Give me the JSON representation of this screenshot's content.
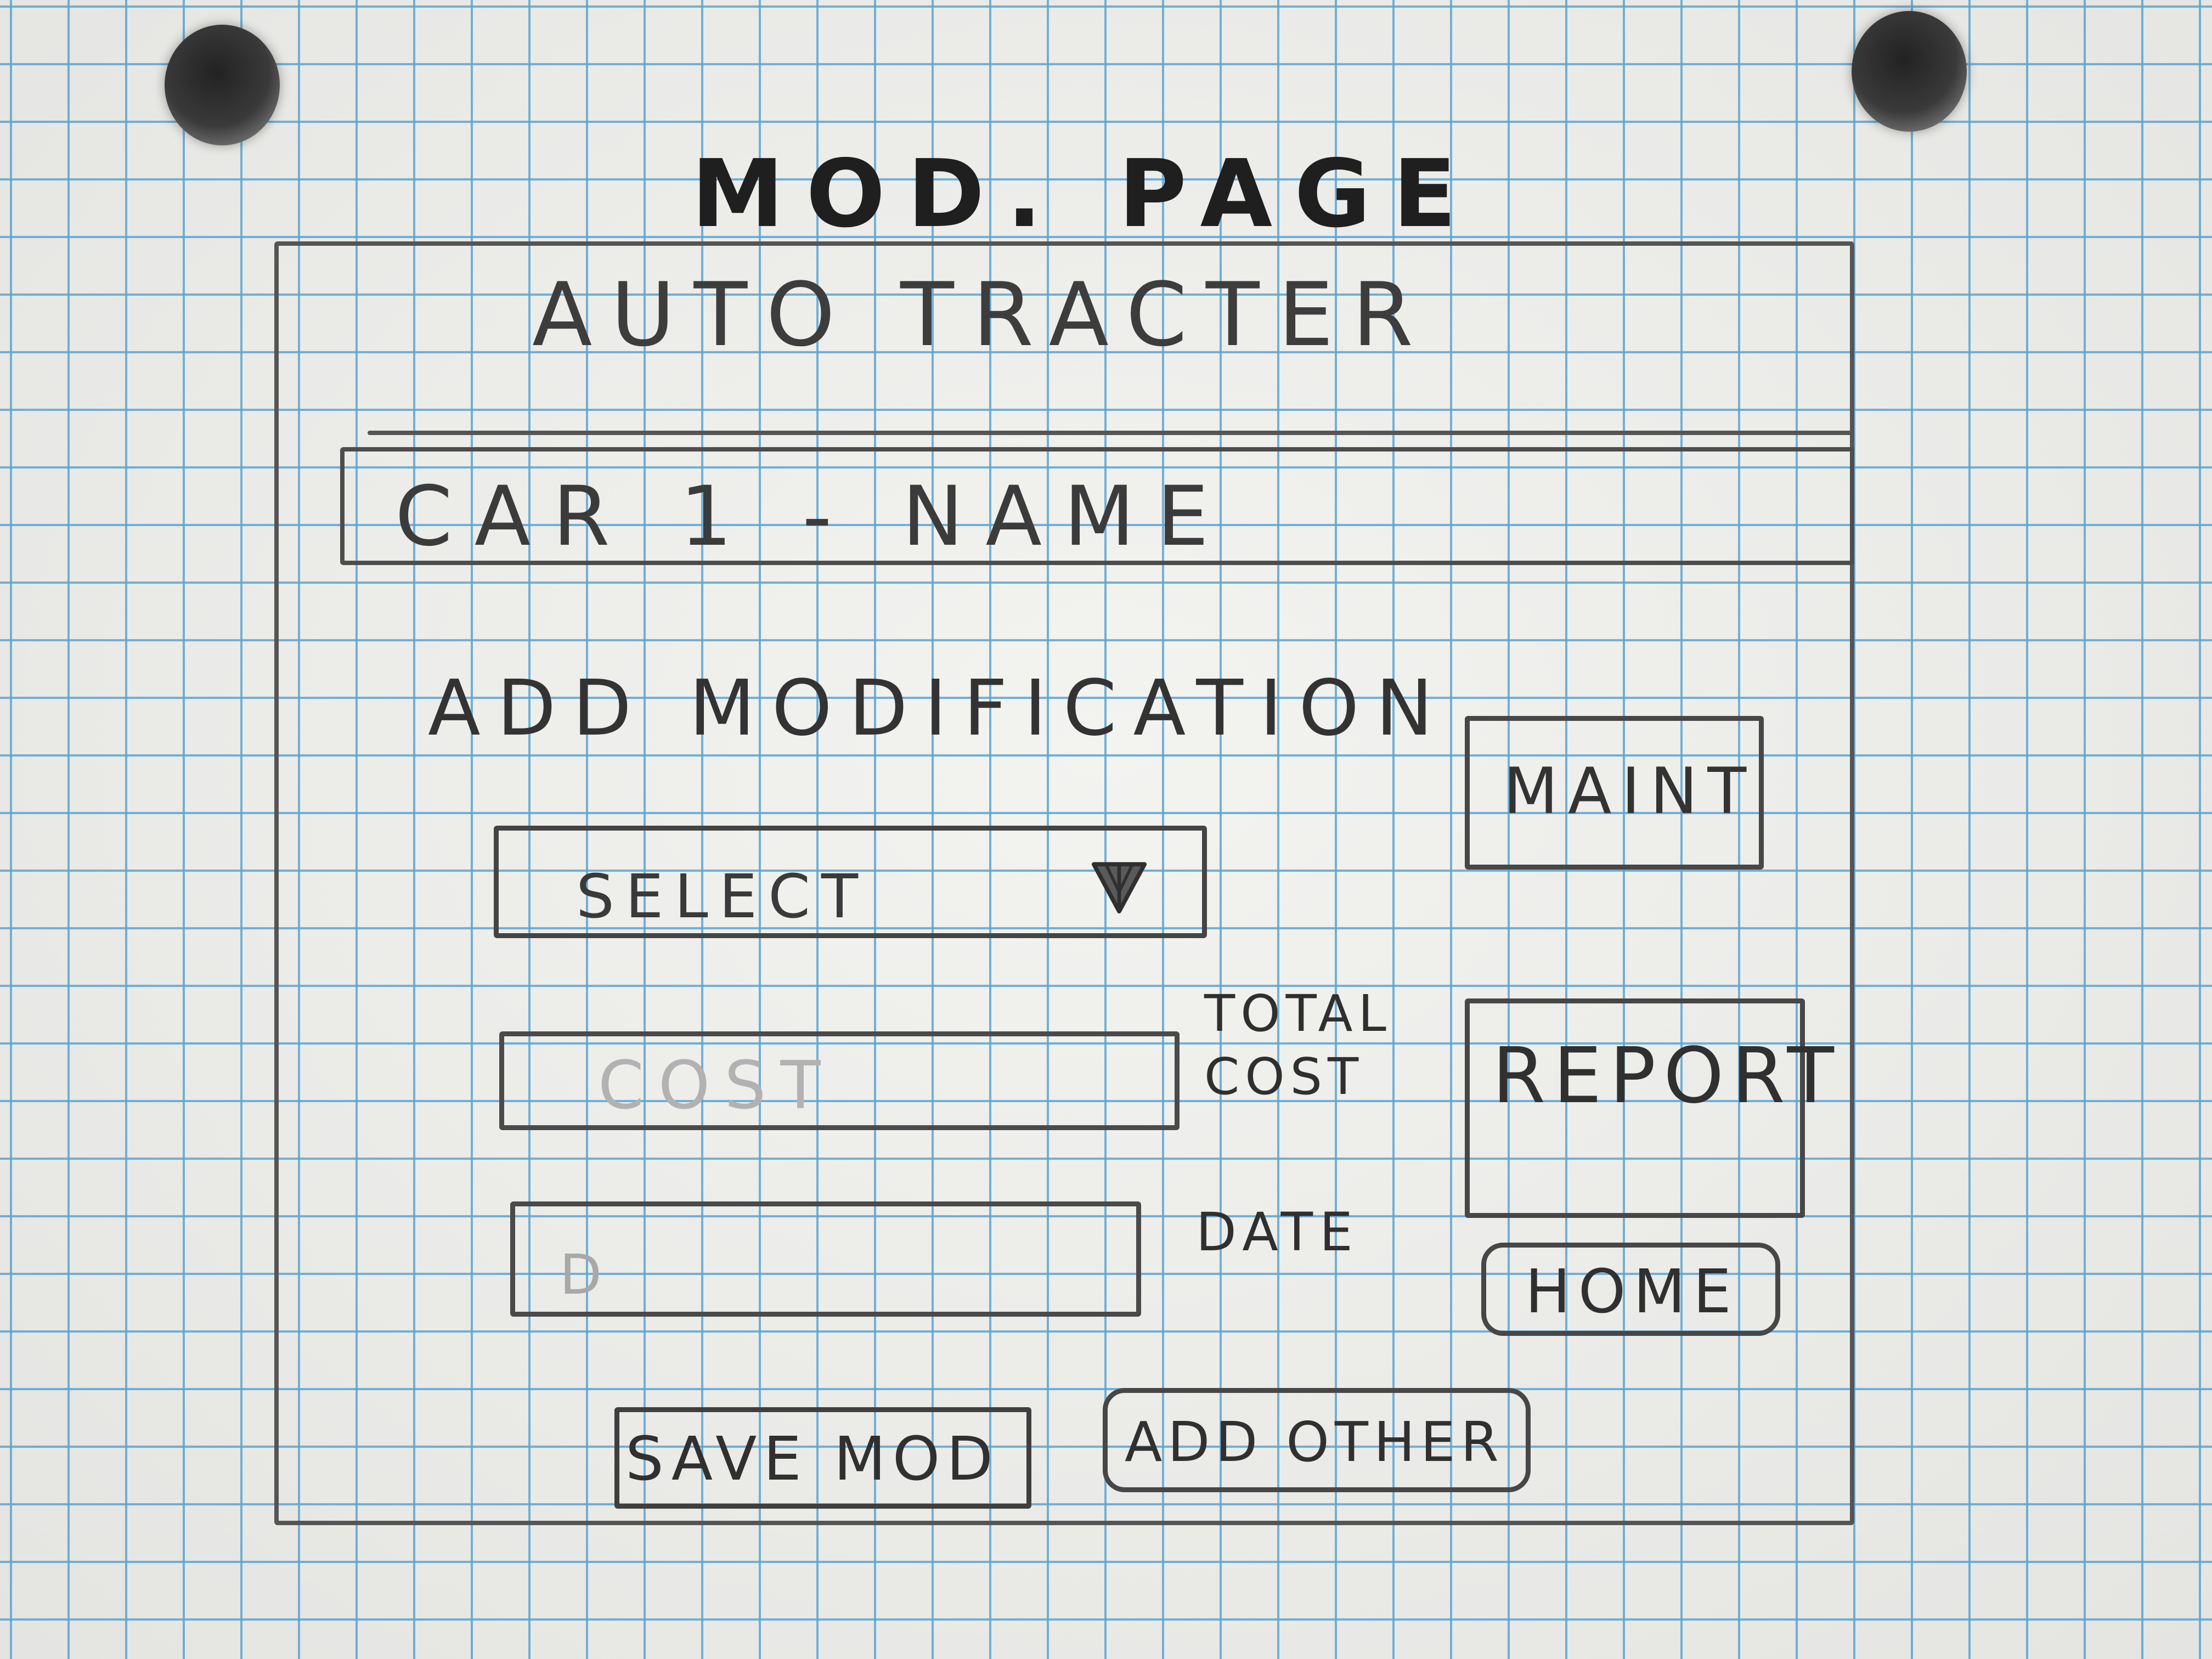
{
  "page_title": "MOD. PAGE",
  "app": {
    "title": "AUTO TRACTER"
  },
  "car": {
    "name": "CAR 1 - NAME"
  },
  "form": {
    "heading": "ADD MODIFICATION",
    "select": {
      "value": "SELECT",
      "arrow_icon": "chevron-down-icon"
    },
    "cost": {
      "placeholder": "COST",
      "label": "TOTAL COST"
    },
    "date": {
      "placeholder": "D",
      "label": "DATE"
    }
  },
  "buttons": {
    "maint": "MAINT",
    "report": "REPORT",
    "home": "HOME",
    "save_mod": "SAVE MOD",
    "add_other": "ADD OTHER"
  }
}
